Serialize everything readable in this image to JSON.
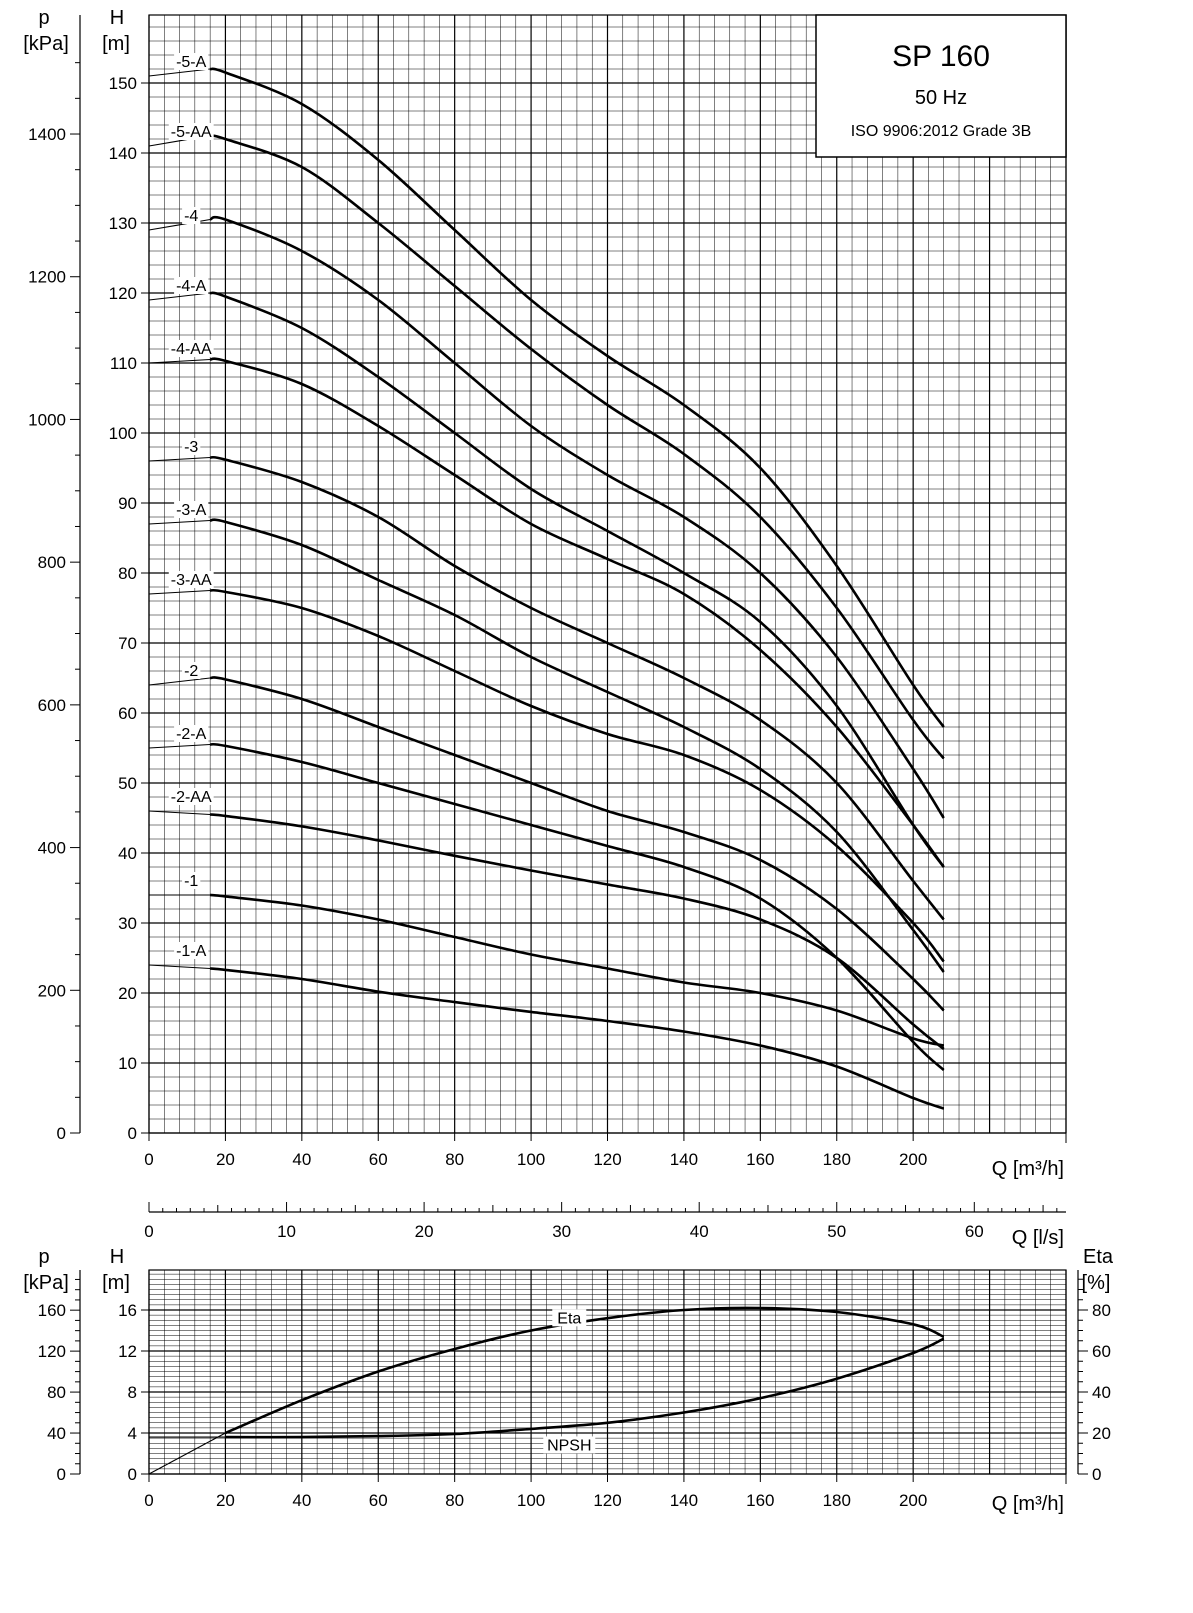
{
  "title_box": {
    "model": "SP 160",
    "frequency": "50 Hz",
    "standard": "ISO 9906:2012 Grade 3B"
  },
  "axes": {
    "top_p_label": [
      "p",
      "[kPa]"
    ],
    "top_h_label": [
      "H",
      "[m]"
    ],
    "q_m3h_label": "Q [m³/h]",
    "q_ls_label": "Q [l/s]",
    "bottom_p_label": [
      "p",
      "[kPa]"
    ],
    "bottom_h_label": [
      "H",
      "[m]"
    ],
    "bottom_eta_label": [
      "Eta",
      "[%]"
    ]
  },
  "chart_data": [
    {
      "type": "line",
      "title": "",
      "xlabel": "Q [m³/h]",
      "ylabel": "H [m]",
      "secondary_ylabel": "p [kPa]",
      "xlim": [
        0,
        240
      ],
      "ylim": [
        0,
        152
      ],
      "x_ticks": [
        "0",
        "20",
        "40",
        "60",
        "80",
        "100",
        "120",
        "140",
        "160",
        "180",
        "200"
      ],
      "y_ticks": [
        "0",
        "10",
        "20",
        "30",
        "40",
        "50",
        "60",
        "70",
        "80",
        "90",
        "100",
        "110",
        "120",
        "130",
        "140",
        "150"
      ],
      "p_ticks": [
        "0",
        "200",
        "400",
        "600",
        "800",
        "1000",
        "1200",
        "1400"
      ],
      "q_ls_ticks": [
        "0",
        "10",
        "20",
        "30",
        "40",
        "50",
        "60"
      ],
      "grid": true,
      "series": [
        {
          "name": "-5-A",
          "x": [
            0,
            16,
            20,
            40,
            60,
            80,
            100,
            120,
            140,
            160,
            180,
            200,
            208
          ],
          "y": [
            151,
            152,
            151.5,
            147,
            139,
            129,
            119,
            111,
            104,
            95,
            81,
            64,
            58
          ]
        },
        {
          "name": "-5-AA",
          "x": [
            0,
            16,
            20,
            40,
            60,
            80,
            100,
            120,
            140,
            160,
            180,
            200,
            208
          ],
          "y": [
            141,
            142.5,
            142,
            138,
            130,
            121,
            112,
            104,
            97,
            88,
            75,
            59,
            53.5
          ]
        },
        {
          "name": "-4",
          "x": [
            0,
            16,
            20,
            40,
            60,
            80,
            100,
            120,
            140,
            160,
            180,
            200,
            208
          ],
          "y": [
            129,
            130.5,
            130.5,
            126,
            119,
            110,
            101,
            94,
            88,
            80,
            68,
            52,
            45
          ]
        },
        {
          "name": "-4-A",
          "x": [
            0,
            16,
            20,
            40,
            60,
            80,
            100,
            120,
            140,
            160,
            180,
            200,
            208
          ],
          "y": [
            119,
            120,
            119.5,
            115,
            108,
            100,
            92,
            86,
            80,
            73,
            61,
            44,
            38
          ]
        },
        {
          "name": "-4-AA",
          "x": [
            0,
            16,
            20,
            40,
            60,
            80,
            100,
            120,
            140,
            160,
            180,
            200,
            208
          ],
          "y": [
            110,
            110.5,
            110.3,
            107,
            101,
            94,
            87,
            82,
            77,
            69,
            58,
            44,
            38
          ]
        },
        {
          "name": "-3",
          "x": [
            0,
            16,
            20,
            40,
            60,
            80,
            100,
            120,
            140,
            160,
            180,
            200,
            208
          ],
          "y": [
            96,
            96.5,
            96.2,
            93,
            88,
            81,
            75,
            70,
            65,
            59,
            50,
            36,
            30.5
          ]
        },
        {
          "name": "-3-A",
          "x": [
            0,
            16,
            20,
            40,
            60,
            80,
            100,
            120,
            140,
            160,
            180,
            200,
            208
          ],
          "y": [
            87,
            87.5,
            87.3,
            84,
            79,
            74,
            68,
            63,
            58,
            52,
            43,
            29,
            23
          ]
        },
        {
          "name": "-3-AA",
          "x": [
            0,
            16,
            20,
            40,
            60,
            80,
            100,
            120,
            140,
            160,
            180,
            200,
            208
          ],
          "y": [
            77,
            77.5,
            77.3,
            75,
            71,
            66,
            61,
            57,
            54,
            49,
            41,
            30,
            24.5
          ]
        },
        {
          "name": "-2",
          "x": [
            0,
            16,
            20,
            40,
            60,
            80,
            100,
            120,
            140,
            160,
            180,
            200,
            208
          ],
          "y": [
            64,
            65,
            64.8,
            62,
            58,
            54,
            50,
            46,
            43,
            39,
            32,
            22,
            17.5
          ]
        },
        {
          "name": "-2-A",
          "x": [
            0,
            16,
            20,
            40,
            60,
            80,
            100,
            120,
            140,
            160,
            180,
            200,
            208
          ],
          "y": [
            55,
            55.5,
            55.3,
            53,
            50,
            47,
            44,
            41,
            38,
            33.5,
            25,
            13,
            9
          ]
        },
        {
          "name": "-2-AA",
          "x": [
            0,
            16,
            20,
            40,
            60,
            80,
            100,
            120,
            140,
            160,
            180,
            200,
            208
          ],
          "y": [
            46,
            45.5,
            45.3,
            43.8,
            41.8,
            39.6,
            37.5,
            35.5,
            33.5,
            30.5,
            25,
            15.5,
            12
          ]
        },
        {
          "name": "-1",
          "x": [
            0,
            16,
            20,
            40,
            60,
            80,
            100,
            120,
            140,
            160,
            180,
            200,
            208
          ],
          "y": [
            34,
            34,
            33.8,
            32.5,
            30.5,
            28,
            25.5,
            23.5,
            21.5,
            20,
            17.5,
            13.5,
            12.5
          ]
        },
        {
          "name": "-1-A",
          "x": [
            0,
            16,
            20,
            40,
            60,
            80,
            100,
            120,
            140,
            160,
            180,
            200,
            208
          ],
          "y": [
            24,
            23.5,
            23.3,
            22,
            20.2,
            18.7,
            17.3,
            16,
            14.5,
            12.5,
            9.5,
            5,
            3.5
          ]
        }
      ]
    },
    {
      "type": "line",
      "title": "",
      "xlabel": "Q [m³/h]",
      "ylabel": "H [m]",
      "secondary_ylabel": "p [kPa]",
      "right_ylabel": "Eta [%]",
      "xlim": [
        0,
        240
      ],
      "ylim": [
        0,
        20
      ],
      "eta_lim": [
        0,
        100
      ],
      "x_ticks": [
        "0",
        "20",
        "40",
        "60",
        "80",
        "100",
        "120",
        "140",
        "160",
        "180",
        "200"
      ],
      "h_ticks": [
        "0",
        "4",
        "8",
        "12",
        "16"
      ],
      "p_ticks": [
        "0",
        "40",
        "80",
        "120",
        "160"
      ],
      "eta_ticks": [
        "0",
        "20",
        "40",
        "60",
        "80"
      ],
      "grid": true,
      "series": [
        {
          "name": "Eta",
          "axis": "eta",
          "x": [
            0,
            20,
            40,
            60,
            80,
            100,
            120,
            140,
            160,
            180,
            200,
            208
          ],
          "y": [
            0,
            20,
            36,
            50,
            61,
            70,
            76,
            80,
            81,
            79,
            73,
            67
          ]
        },
        {
          "name": "NPSH",
          "axis": "h",
          "x": [
            0,
            20,
            40,
            60,
            80,
            100,
            120,
            140,
            160,
            180,
            200,
            208
          ],
          "y": [
            3.6,
            3.6,
            3.6,
            3.7,
            3.9,
            4.4,
            5.0,
            6.0,
            7.4,
            9.3,
            11.8,
            13.2
          ]
        }
      ]
    }
  ]
}
